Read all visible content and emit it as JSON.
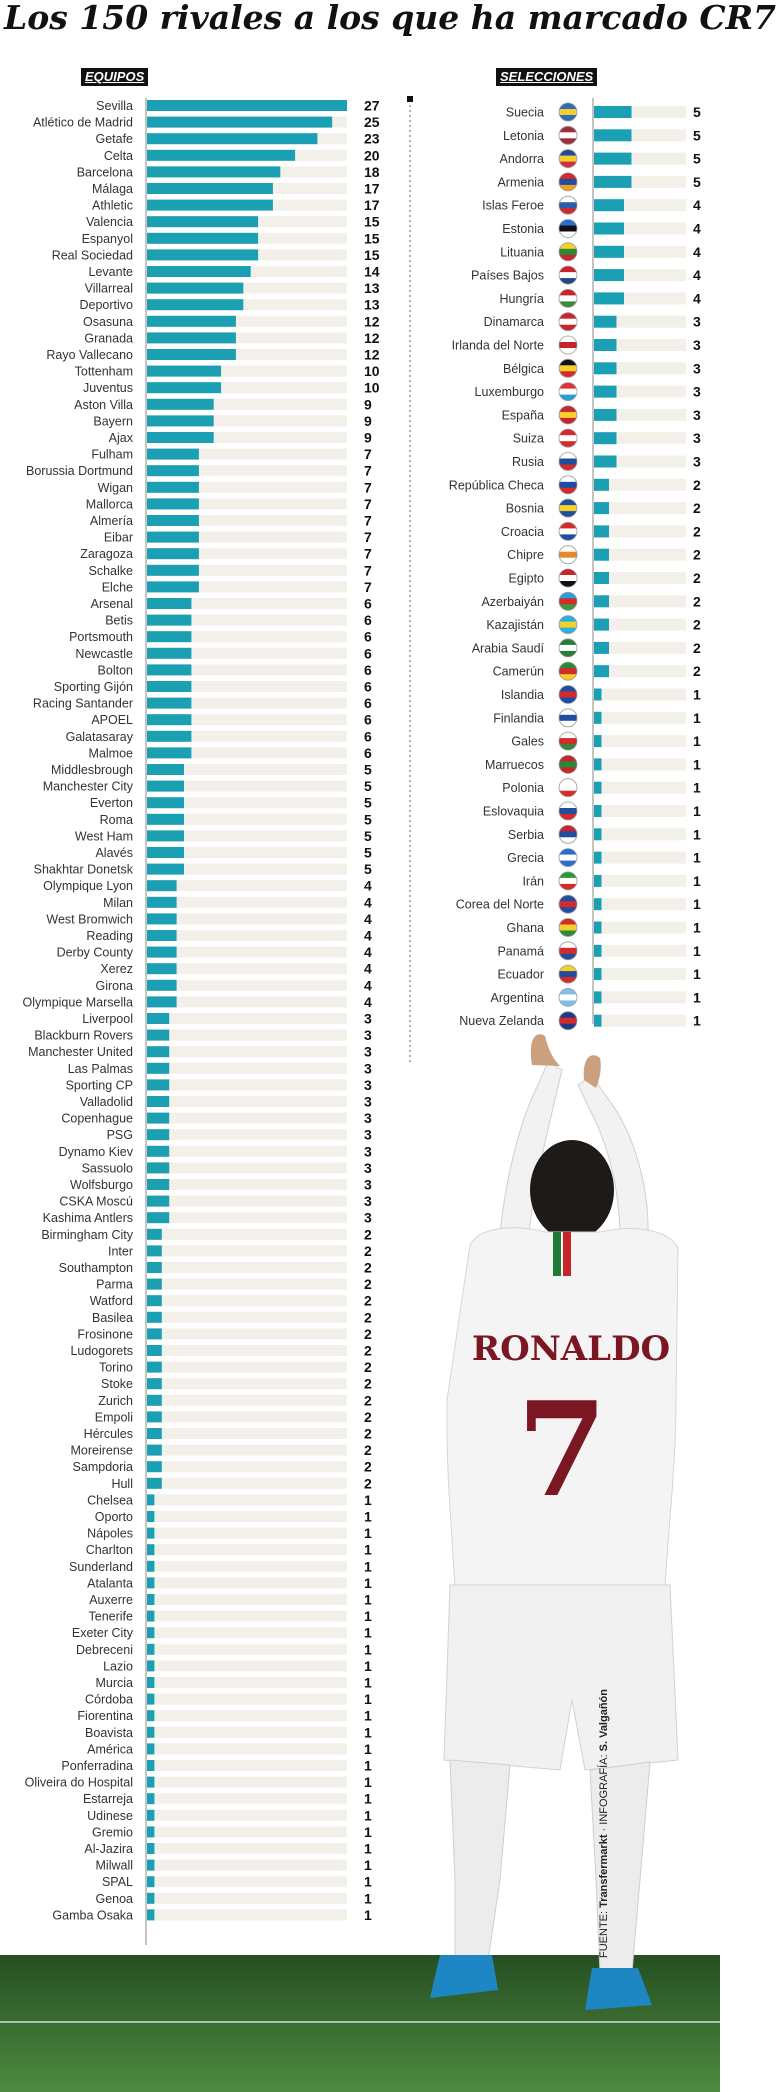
{
  "title": "Los 150 rivales a los que ha marcado CR7",
  "source": {
    "label": "FUENTE:",
    "source_name": "Transfermarkt",
    "sep": "·",
    "credit_label": "INFOGRAFÍA:",
    "credit_name": "S. Valgañón"
  },
  "photo": {
    "shirt_name": "RONALDO",
    "shirt_number": "7"
  },
  "colors": {
    "bar": "#1a9fb3",
    "track": "#f2f0e8",
    "title": "#111111",
    "grass": "#3f7a36"
  },
  "chart_data": [
    {
      "type": "bar",
      "orientation": "horizontal",
      "title": "EQUIPOS",
      "xlim": [
        0,
        27
      ],
      "categories": [
        "Sevilla",
        "Atlético de Madrid",
        "Getafe",
        "Celta",
        "Barcelona",
        "Málaga",
        "Athletic",
        "Valencia",
        "Espanyol",
        "Real Sociedad",
        "Levante",
        "Villarreal",
        "Deportivo",
        "Osasuna",
        "Granada",
        "Rayo Vallecano",
        "Tottenham",
        "Juventus",
        "Aston Villa",
        "Bayern",
        "Ajax",
        "Fulham",
        "Borussia Dortmund",
        "Wigan",
        "Mallorca",
        "Almería",
        "Eibar",
        "Zaragoza",
        "Schalke",
        "Elche",
        "Arsenal",
        "Betis",
        "Portsmouth",
        "Newcastle",
        "Bolton",
        "Sporting Gijón",
        "Racing Santander",
        "APOEL",
        "Galatasaray",
        "Malmoe",
        "Middlesbrough",
        "Manchester City",
        "Everton",
        "Roma",
        "West Ham",
        "Alavés",
        "Shakhtar Donetsk",
        "Olympique Lyon",
        "Milan",
        "West Bromwich",
        "Reading",
        "Derby County",
        "Xerez",
        "Girona",
        "Olympique Marsella",
        "Liverpool",
        "Blackburn Rovers",
        "Manchester United",
        "Las Palmas",
        "Sporting CP",
        "Valladolid",
        "Copenhague",
        "PSG",
        "Dynamo Kiev",
        "Sassuolo",
        "Wolfsburgo",
        "CSKA Moscú",
        "Kashima Antlers",
        "Birmingham City",
        "Inter",
        "Southampton",
        "Parma",
        "Watford",
        "Basilea",
        "Frosinone",
        "Ludogorets",
        "Torino",
        "Stoke",
        "Zurich",
        "Empoli",
        "Hércules",
        "Moreirense",
        "Sampdoria",
        "Hull",
        "Chelsea",
        "Oporto",
        "Nápoles",
        "Charlton",
        "Sunderland",
        "Atalanta",
        "Auxerre",
        "Tenerife",
        "Exeter City",
        "Debreceni",
        "Lazio",
        "Murcia",
        "Córdoba",
        "Fiorentina",
        "Boavista",
        "América",
        "Ponferradina",
        "Oliveira do Hospital",
        "Estarreja",
        "Udinese",
        "Gremio",
        "Al-Jazira",
        "Milwall",
        "SPAL",
        "Genoa",
        "Gamba Osaka"
      ],
      "values": [
        27,
        25,
        23,
        20,
        18,
        17,
        17,
        15,
        15,
        15,
        14,
        13,
        13,
        12,
        12,
        12,
        10,
        10,
        9,
        9,
        9,
        7,
        7,
        7,
        7,
        7,
        7,
        7,
        7,
        7,
        6,
        6,
        6,
        6,
        6,
        6,
        6,
        6,
        6,
        6,
        5,
        5,
        5,
        5,
        5,
        5,
        5,
        4,
        4,
        4,
        4,
        4,
        4,
        4,
        4,
        3,
        3,
        3,
        3,
        3,
        3,
        3,
        3,
        3,
        3,
        3,
        3,
        3,
        2,
        2,
        2,
        2,
        2,
        2,
        2,
        2,
        2,
        2,
        2,
        2,
        2,
        2,
        2,
        2,
        1,
        1,
        1,
        1,
        1,
        1,
        1,
        1,
        1,
        1,
        1,
        1,
        1,
        1,
        1,
        1,
        1,
        1,
        1,
        1,
        1,
        1,
        1,
        1,
        1,
        1
      ]
    },
    {
      "type": "bar",
      "orientation": "horizontal",
      "title": "SELECCIONES",
      "xlim": [
        0,
        27
      ],
      "categories": [
        "Suecia",
        "Letonia",
        "Andorra",
        "Armenia",
        "Islas Feroe",
        "Estonia",
        "Lituania",
        "Países Bajos",
        "Hungría",
        "Dinamarca",
        "Irlanda del Norte",
        "Bélgica",
        "Luxemburgo",
        "España",
        "Suiza",
        "Rusia",
        "República Checa",
        "Bosnia",
        "Croacia",
        "Chipre",
        "Egipto",
        "Azerbaiyán",
        "Kazajistán",
        "Arabia Saudí",
        "Camerún",
        "Islandia",
        "Finlandia",
        "Gales",
        "Marruecos",
        "Polonia",
        "Eslovaquia",
        "Serbia",
        "Grecia",
        "Irán",
        "Corea del Norte",
        "Ghana",
        "Panamá",
        "Ecuador",
        "Argentina",
        "Nueva Zelanda"
      ],
      "values": [
        5,
        5,
        5,
        5,
        4,
        4,
        4,
        4,
        4,
        3,
        3,
        3,
        3,
        3,
        3,
        3,
        2,
        2,
        2,
        2,
        2,
        2,
        2,
        2,
        2,
        1,
        1,
        1,
        1,
        1,
        1,
        1,
        1,
        1,
        1,
        1,
        1,
        1,
        1,
        1
      ],
      "flag_colors": [
        [
          "#2a6fb5",
          "#f6cf2c",
          "#2a6fb5"
        ],
        [
          "#9e3039",
          "#ffffff",
          "#9e3039"
        ],
        [
          "#1f4ea1",
          "#f6cf2c",
          "#cf2f3c"
        ],
        [
          "#d52a2a",
          "#1f4ea1",
          "#f0a020"
        ],
        [
          "#ffffff",
          "#2a5fb0",
          "#d52a2a"
        ],
        [
          "#2b6fcf",
          "#111111",
          "#ffffff"
        ],
        [
          "#f6cf2c",
          "#2a8a3a",
          "#c8242c"
        ],
        [
          "#c8242c",
          "#ffffff",
          "#21468b"
        ],
        [
          "#c8242c",
          "#ffffff",
          "#3a8a3a"
        ],
        [
          "#c8242c",
          "#ffffff",
          "#c8242c"
        ],
        [
          "#ffffff",
          "#c8242c",
          "#ffffff"
        ],
        [
          "#111111",
          "#f6cf2c",
          "#d52a2a"
        ],
        [
          "#e0303a",
          "#ffffff",
          "#26a0db"
        ],
        [
          "#c8242c",
          "#f6cf2c",
          "#c8242c"
        ],
        [
          "#d52a2a",
          "#ffffff",
          "#d52a2a"
        ],
        [
          "#ffffff",
          "#1f4ea1",
          "#d52a2a"
        ],
        [
          "#ffffff",
          "#1f4ea1",
          "#d52a2a"
        ],
        [
          "#1f4ea1",
          "#f6cf2c",
          "#1f4ea1"
        ],
        [
          "#d52a2a",
          "#ffffff",
          "#1f4ea1"
        ],
        [
          "#ffffff",
          "#e08a2a",
          "#ffffff"
        ],
        [
          "#c8242c",
          "#ffffff",
          "#111111"
        ],
        [
          "#26a0db",
          "#d52a2a",
          "#3a9a3a"
        ],
        [
          "#26b0e0",
          "#f6cf2c",
          "#26b0e0"
        ],
        [
          "#2a7a3a",
          "#ffffff",
          "#2a7a3a"
        ],
        [
          "#2a8a3a",
          "#d52a2a",
          "#f6cf2c"
        ],
        [
          "#1f4ea1",
          "#d52a2a",
          "#1f4ea1"
        ],
        [
          "#ffffff",
          "#1f4ea1",
          "#ffffff"
        ],
        [
          "#ffffff",
          "#d52a2a",
          "#2a8a3a"
        ],
        [
          "#c8242c",
          "#2a8a3a",
          "#c8242c"
        ],
        [
          "#ffffff",
          "#ffffff",
          "#d52a2a"
        ],
        [
          "#ffffff",
          "#1f4ea1",
          "#d52a2a"
        ],
        [
          "#c8242c",
          "#1f4ea1",
          "#ffffff"
        ],
        [
          "#2a6fcf",
          "#ffffff",
          "#2a6fcf"
        ],
        [
          "#2a9a3a",
          "#ffffff",
          "#d52a2a"
        ],
        [
          "#1f4ea1",
          "#d52a2a",
          "#1f4ea1"
        ],
        [
          "#d52a2a",
          "#f6cf2c",
          "#2a8a3a"
        ],
        [
          "#ffffff",
          "#d52a2a",
          "#1f4ea1"
        ],
        [
          "#f6cf2c",
          "#1f4ea1",
          "#d52a2a"
        ],
        [
          "#7ec0ea",
          "#ffffff",
          "#7ec0ea"
        ],
        [
          "#1f3a8a",
          "#d52a2a",
          "#1f3a8a"
        ]
      ]
    }
  ]
}
